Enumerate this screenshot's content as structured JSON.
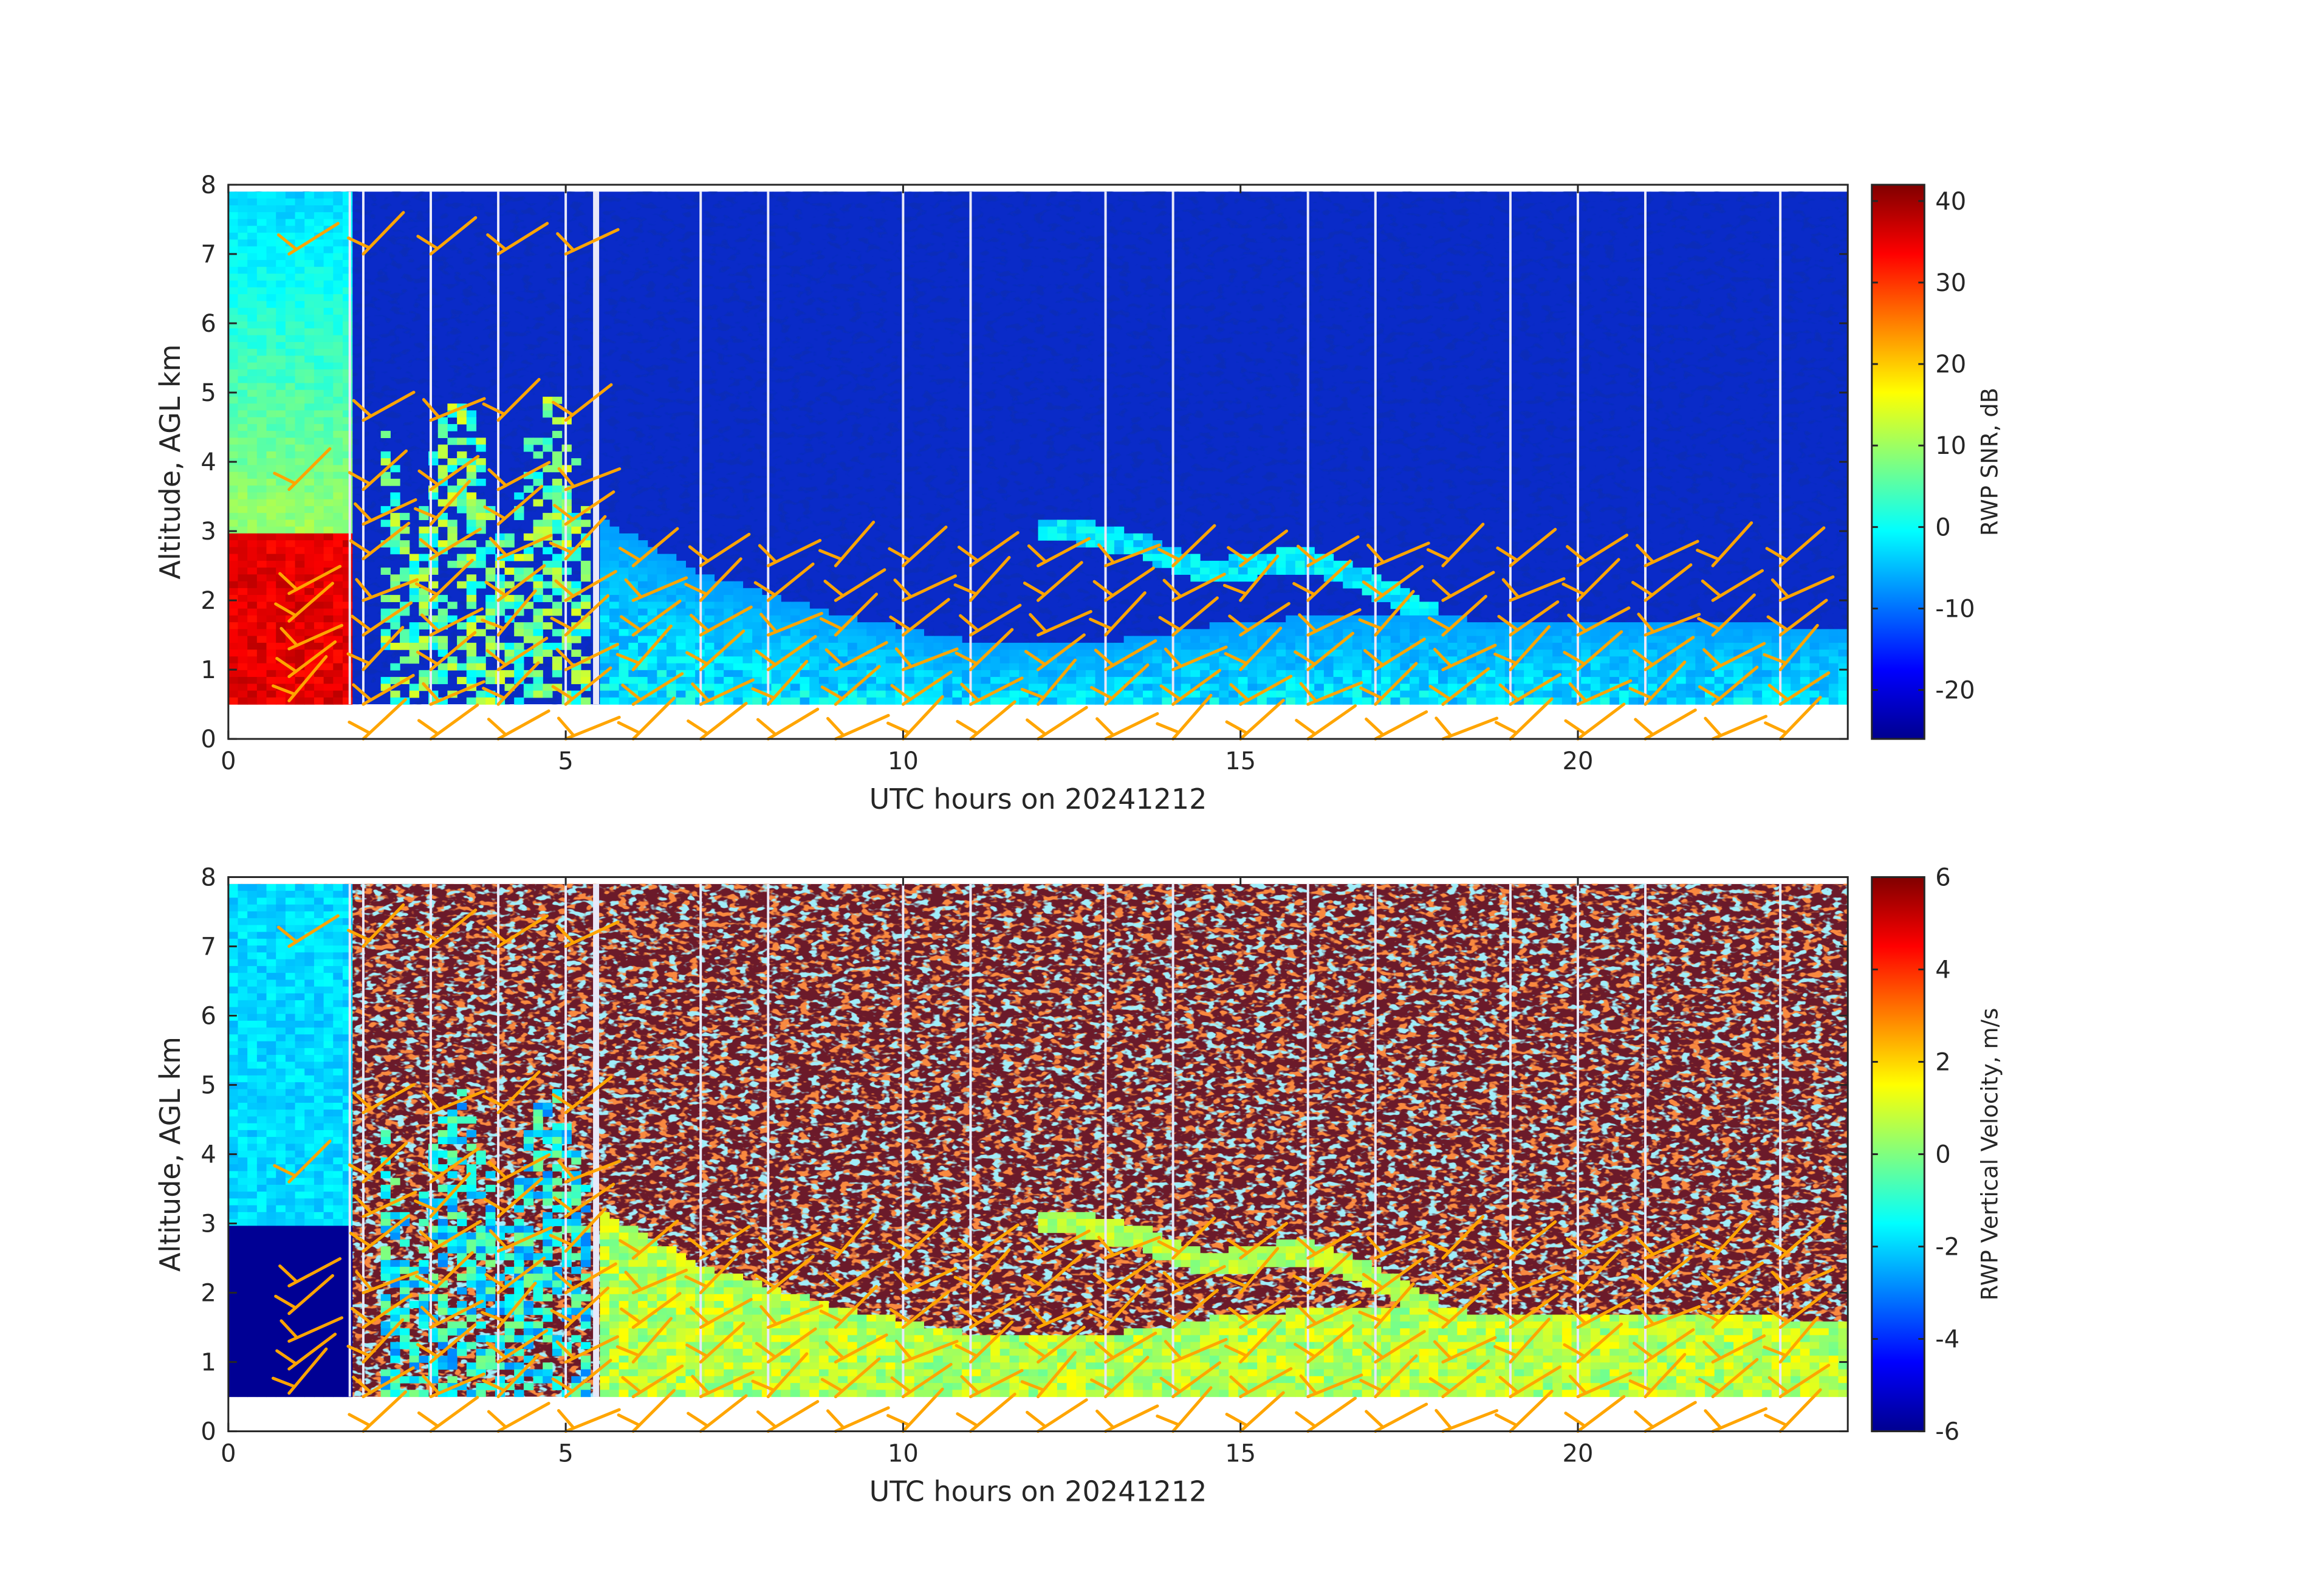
{
  "chart_data": [
    {
      "type": "heatmap",
      "colormap": "jet",
      "xlabel": "UTC hours on 20241212",
      "ylabel": "Altitude, AGL km",
      "colorbar_label": "RWP SNR, dB",
      "xlim": [
        0,
        24
      ],
      "ylim": [
        0,
        8
      ],
      "clim": [
        -26,
        42
      ],
      "xticks": [
        0,
        5,
        10,
        15,
        20
      ],
      "yticks": [
        0,
        1,
        2,
        3,
        4,
        5,
        6,
        7,
        8
      ],
      "cticks": [
        -20,
        -10,
        0,
        10,
        20,
        30,
        40
      ],
      "grid": false,
      "data_gaps_hours": [
        1.8,
        2.0,
        3.0,
        4.0,
        5.0,
        5.45,
        7.0,
        8.0,
        10.0,
        11.0,
        13.0,
        14.0,
        16.0,
        17.0,
        19.0,
        20.0,
        21.0,
        23.0
      ],
      "data_bottom_km": 0.5,
      "data_top_km": 7.9,
      "boundary_layer_top_km": [
        {
          "x": 5.5,
          "y": 3.2
        },
        {
          "x": 7,
          "y": 2.4
        },
        {
          "x": 9,
          "y": 1.8
        },
        {
          "x": 11,
          "y": 1.4
        },
        {
          "x": 13,
          "y": 1.4
        },
        {
          "x": 15,
          "y": 1.7
        },
        {
          "x": 17,
          "y": 1.8
        },
        {
          "x": 19,
          "y": 1.7
        },
        {
          "x": 21,
          "y": 1.7
        },
        {
          "x": 24,
          "y": 1.6
        }
      ],
      "cloud_layer": [
        {
          "x": 12.5,
          "y": 3.0
        },
        {
          "x": 13.5,
          "y": 2.8
        },
        {
          "x": 14.5,
          "y": 2.4
        },
        {
          "x": 16,
          "y": 2.6
        },
        {
          "x": 17,
          "y": 2.2
        },
        {
          "x": 18,
          "y": 1.7
        }
      ]
    },
    {
      "type": "heatmap",
      "colormap": "jet",
      "xlabel": "UTC hours on 20241212",
      "ylabel": "Altitude, AGL km",
      "colorbar_label": "RWP Vertical Velocity, m/s",
      "xlim": [
        0,
        24
      ],
      "ylim": [
        0,
        8
      ],
      "clim": [
        -6,
        6
      ],
      "xticks": [
        0,
        5,
        10,
        15,
        20
      ],
      "yticks": [
        0,
        1,
        2,
        3,
        4,
        5,
        6,
        7,
        8
      ],
      "cticks": [
        -6,
        -4,
        -2,
        0,
        2,
        4,
        6
      ],
      "grid": false
    }
  ],
  "wind_barbs": {
    "color": "#FFA500",
    "times_hours": [
      0.9,
      2.0,
      3.0,
      4.0,
      5.0,
      6.0,
      7.0,
      8.0,
      9.0,
      10.0,
      11.0,
      12.0,
      13.0,
      14.0,
      15.0,
      16.0,
      17.0,
      18.0,
      19.0,
      20.0,
      21.0,
      22.0,
      23.0
    ]
  }
}
